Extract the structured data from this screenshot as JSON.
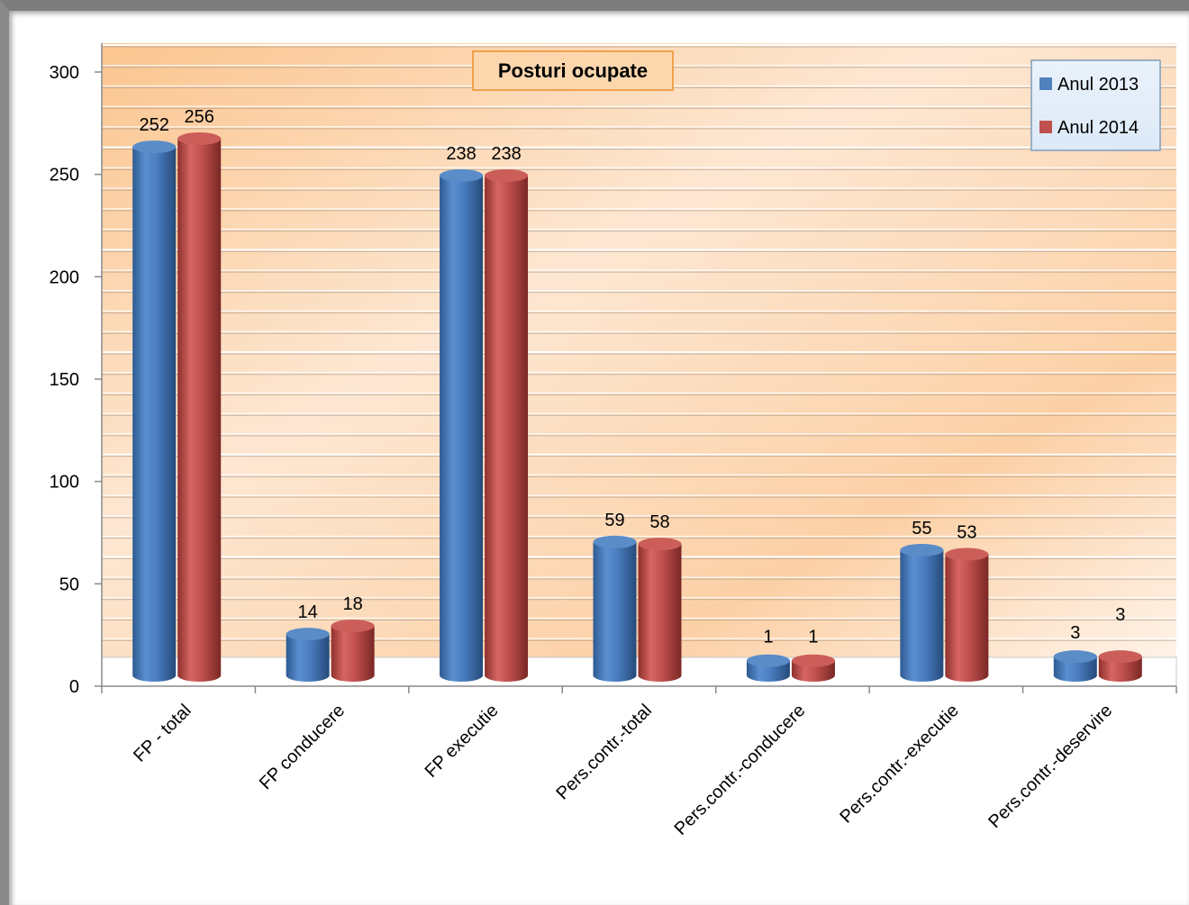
{
  "chart_data": {
    "type": "bar",
    "title": "Posturi ocupate",
    "xlabel": "",
    "ylabel": "",
    "categories": [
      "FP - total",
      "FP conducere",
      "FP executie",
      "Pers.contr.-total",
      "Pers.contr.-conducere",
      "Pers.contr.-executie",
      "Pers.contr.-deservire"
    ],
    "series": [
      {
        "name": "Anul 2013",
        "values": [
          252,
          14,
          238,
          59,
          1,
          55,
          3
        ],
        "color": "#4f81bd"
      },
      {
        "name": "Anul 2014",
        "values": [
          256,
          18,
          238,
          58,
          1,
          53,
          3
        ],
        "color": "#c0504d"
      }
    ],
    "ylim": [
      0,
      300
    ],
    "yticks": [
      0,
      50,
      100,
      150,
      200,
      250,
      300
    ],
    "grid": true,
    "legend_position": "top-right",
    "style": "3d-cylinder"
  }
}
